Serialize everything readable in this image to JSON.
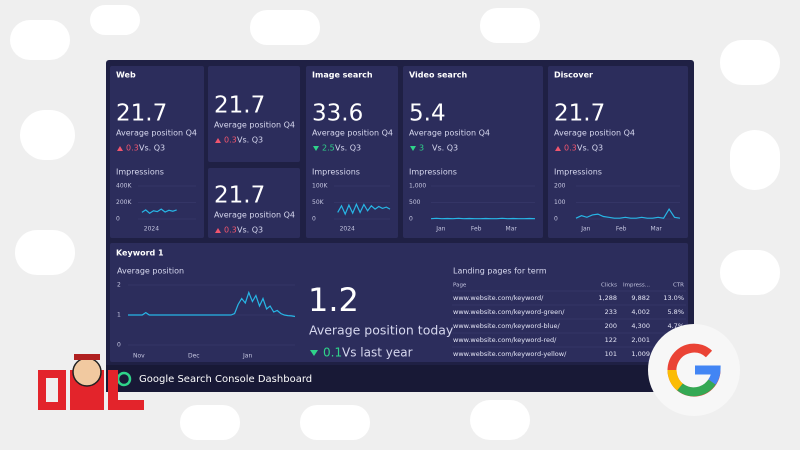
{
  "cards": [
    {
      "title": "Web",
      "value": 21.7,
      "label": "Average position Q4",
      "delta": 0.3,
      "comparison": "Vs. Q3",
      "chart": {
        "label": "Impressions",
        "ylim": [
          0,
          400000
        ],
        "yticks": [
          {
            "value": 0,
            "label": "0"
          },
          {
            "value": 200000,
            "label": "200K"
          },
          {
            "value": 400000,
            "label": "400K"
          }
        ],
        "xlabels": [
          "2024"
        ],
        "values": [
          null,
          80000,
          110000,
          70000,
          100000,
          90000,
          120000,
          85000,
          105000,
          95000,
          110000,
          null,
          null,
          null,
          null,
          null
        ]
      }
    },
    {
      "value": 21.7,
      "label": "Average position Q4",
      "delta": 0.3,
      "comparison": "Vs. Q3"
    },
    {
      "value": 21.7,
      "label": "Average position Q4",
      "delta": 0.3,
      "comparison": "Vs. Q3"
    },
    {
      "title": "Image search",
      "value": 33.6,
      "label": "Average position Q4",
      "delta": 2.5,
      "comparison": "Vs. Q3",
      "chart": {
        "label": "Impressions",
        "ylim": [
          0,
          100000
        ],
        "yticks": [
          {
            "value": 0,
            "label": "0"
          },
          {
            "value": 50000,
            "label": "50K"
          },
          {
            "value": 100000,
            "label": "100K"
          }
        ],
        "xlabels": [
          "2024"
        ],
        "values": [
          null,
          20000,
          40000,
          15000,
          42000,
          18000,
          45000,
          20000,
          44000,
          25000,
          40000,
          30000,
          38000,
          32000,
          36000,
          30000
        ]
      }
    },
    {
      "title": "Video search",
      "value": 5.4,
      "label": "Average position Q4",
      "delta": 3.0,
      "comparison": "Vs. Q3",
      "chart": {
        "label": "Impressions",
        "ylim": [
          0,
          1000
        ],
        "yticks": [
          0,
          500,
          {
            "value": 1000,
            "label": "1,000"
          }
        ],
        "xlabels": [
          "Jan",
          "Feb",
          "Mar"
        ],
        "values": [
          10,
          20,
          10,
          15,
          10,
          20,
          10,
          15,
          10,
          10,
          15,
          10,
          10,
          20,
          10,
          15,
          10,
          10,
          15,
          10
        ]
      }
    },
    {
      "title": "Discover",
      "value": 21.7,
      "label": "Average position Q4",
      "delta": 0.3,
      "comparison": "Vs. Q3",
      "chart": {
        "label": "Impressions",
        "ylim": [
          0,
          200
        ],
        "yticks": [
          0,
          100,
          200
        ],
        "xlabels": [
          "Jan",
          "Feb",
          "Mar"
        ],
        "values": [
          5,
          20,
          10,
          25,
          30,
          15,
          10,
          5,
          5,
          10,
          5,
          5,
          10,
          5,
          5,
          10,
          5,
          60,
          10,
          5
        ]
      }
    }
  ],
  "keyword": {
    "title": "Keyword 1",
    "chart_label": "Average position",
    "ylim": [
      0,
      2
    ],
    "yticks": [
      0,
      1,
      2
    ],
    "xlabels": [
      "Nov",
      "Dec",
      "Jan"
    ],
    "values": [
      1.0,
      1.0,
      1.0,
      1.0,
      1.0,
      1.08,
      1.0,
      1.0,
      1.0,
      1.0,
      1.0,
      1.0,
      1.0,
      1.0,
      1.0,
      1.0,
      1.0,
      1.0,
      1.0,
      1.0,
      1.0,
      1.0,
      1.0,
      1.0,
      1.0,
      1.0,
      1.0,
      1.0,
      1.0,
      1.0,
      1.05,
      1.35,
      1.55,
      1.4,
      1.75,
      1.45,
      1.65,
      1.3,
      1.55,
      1.2,
      1.3,
      1.1,
      1.15,
      1.05,
      1.0,
      0.98,
      0.97,
      0.95
    ],
    "big_value": 1.2,
    "big_label": "Average position today",
    "delta": 0.1,
    "comparison": "Vs last year",
    "table": {
      "title": "Landing pages for term",
      "headers": [
        "Page",
        "Clicks",
        "Impress...",
        "CTR"
      ],
      "rows": [
        [
          "www.website.com/keyword/",
          "1,288",
          "9,882",
          "13.0%"
        ],
        [
          "www.website.com/keyword-green/",
          "233",
          "4,002",
          "5.8%"
        ],
        [
          "www.website.com/keyword-blue/",
          "200",
          "4,300",
          "4.7%"
        ],
        [
          "www.website.com/keyword-red/",
          "122",
          "2,001",
          "6.1%"
        ],
        [
          "www.website.com/keyword-yellow/",
          "101",
          "1,009",
          "10.0%"
        ]
      ]
    }
  },
  "footer": "Google Search Console Dashboard"
}
